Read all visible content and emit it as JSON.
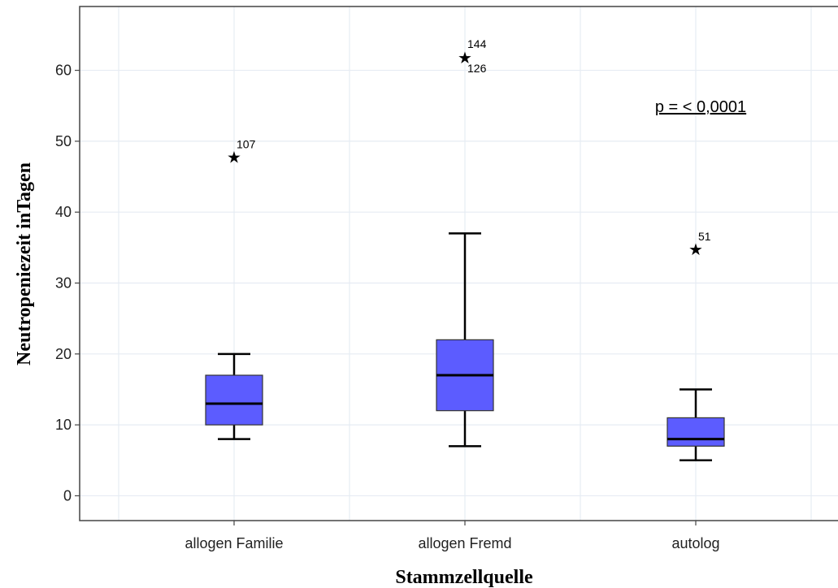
{
  "chart_data": {
    "type": "boxplot",
    "xlabel": "Stammzellquelle",
    "ylabel": "Neutropeniezeit inTagen",
    "ylim": [
      -3.5,
      69
    ],
    "yticks": [
      0,
      10,
      20,
      30,
      40,
      50,
      60
    ],
    "grid": true,
    "box_color": "#5c5cff",
    "annotation": "p = < 0,0001",
    "categories": [
      "allogen Familie",
      "allogen Fremd",
      "autolog"
    ],
    "boxes": [
      {
        "category": "allogen Familie",
        "whisker_low": 8,
        "q1": 10,
        "median": 13,
        "q3": 17,
        "whisker_high": 20,
        "outliers": [
          {
            "value": 48,
            "labels": [
              "107"
            ]
          }
        ]
      },
      {
        "category": "allogen Fremd",
        "whisker_low": 7,
        "q1": 12,
        "median": 17,
        "q3": 22,
        "whisker_high": 37,
        "outliers": [
          {
            "value": 62,
            "labels": [
              "144",
              "126"
            ]
          }
        ]
      },
      {
        "category": "autolog",
        "whisker_low": 5,
        "q1": 7,
        "median": 8,
        "q3": 11,
        "whisker_high": 15,
        "outliers": [
          {
            "value": 35,
            "labels": [
              "51"
            ]
          }
        ]
      }
    ]
  }
}
